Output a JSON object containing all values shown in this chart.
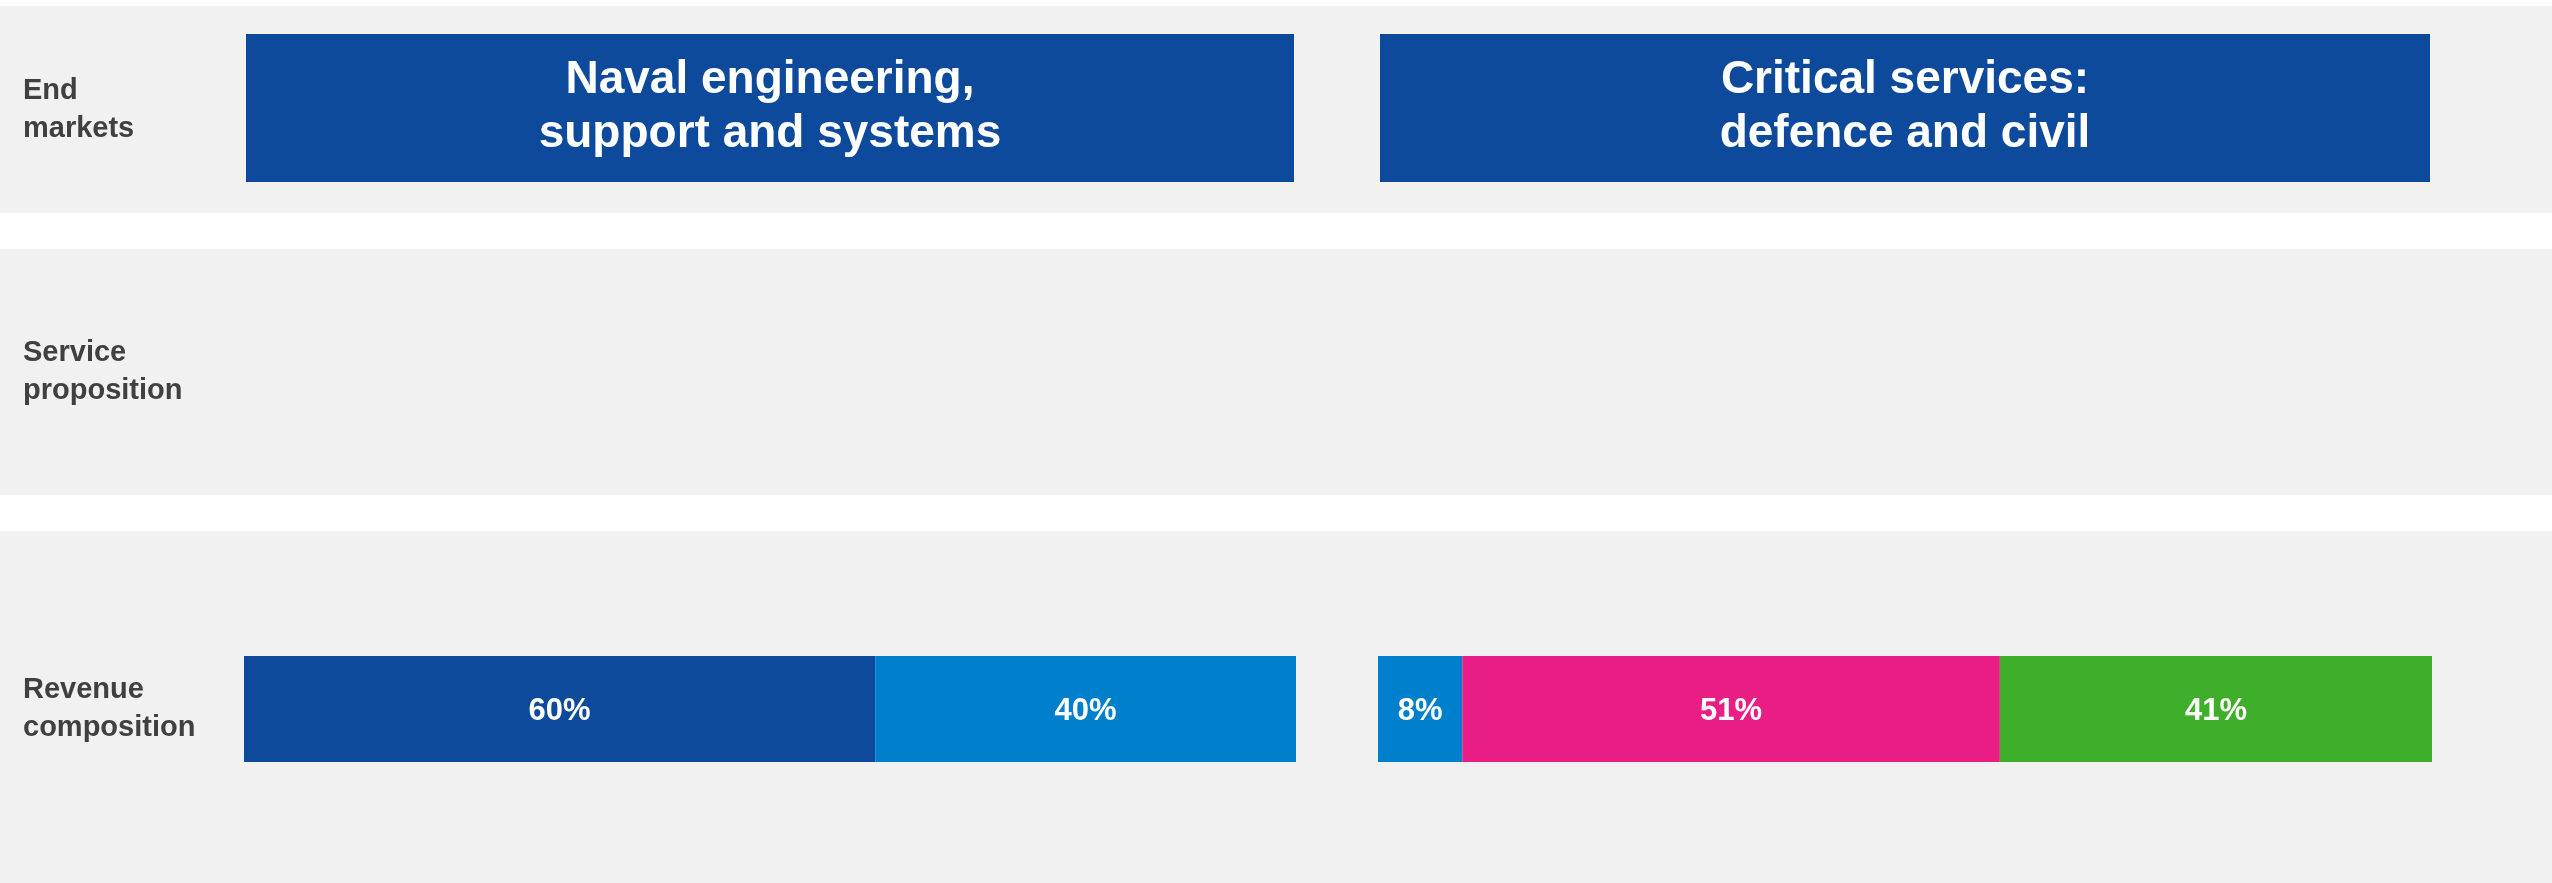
{
  "chart_data": [
    {
      "type": "bar",
      "title": "Naval engineering, support and systems",
      "orientation": "horizontal",
      "stacked": true,
      "categories": [
        "Revenue composition"
      ],
      "xlim": [
        0,
        100
      ],
      "annotations": [
        "End markets",
        "Service proposition"
      ],
      "series": [
        {
          "color": "#0d4a9c",
          "values": [
            60
          ],
          "value_labels": [
            "60%"
          ]
        },
        {
          "color": "#0080cc",
          "values": [
            40
          ],
          "value_labels": [
            "40%"
          ]
        }
      ]
    },
    {
      "type": "bar",
      "title": "Critical services: defence and civil",
      "orientation": "horizontal",
      "stacked": true,
      "categories": [
        null
      ],
      "xlim": [
        0,
        100
      ],
      "series": [
        {
          "color": "#0080cc",
          "values": [
            8
          ],
          "value_labels": [
            "8%"
          ]
        },
        {
          "color": "#e91e84",
          "values": [
            51
          ],
          "value_labels": [
            "51%"
          ]
        },
        {
          "color": "#3fae2a",
          "values": [
            41
          ],
          "value_labels": [
            "41%"
          ]
        }
      ]
    }
  ]
}
